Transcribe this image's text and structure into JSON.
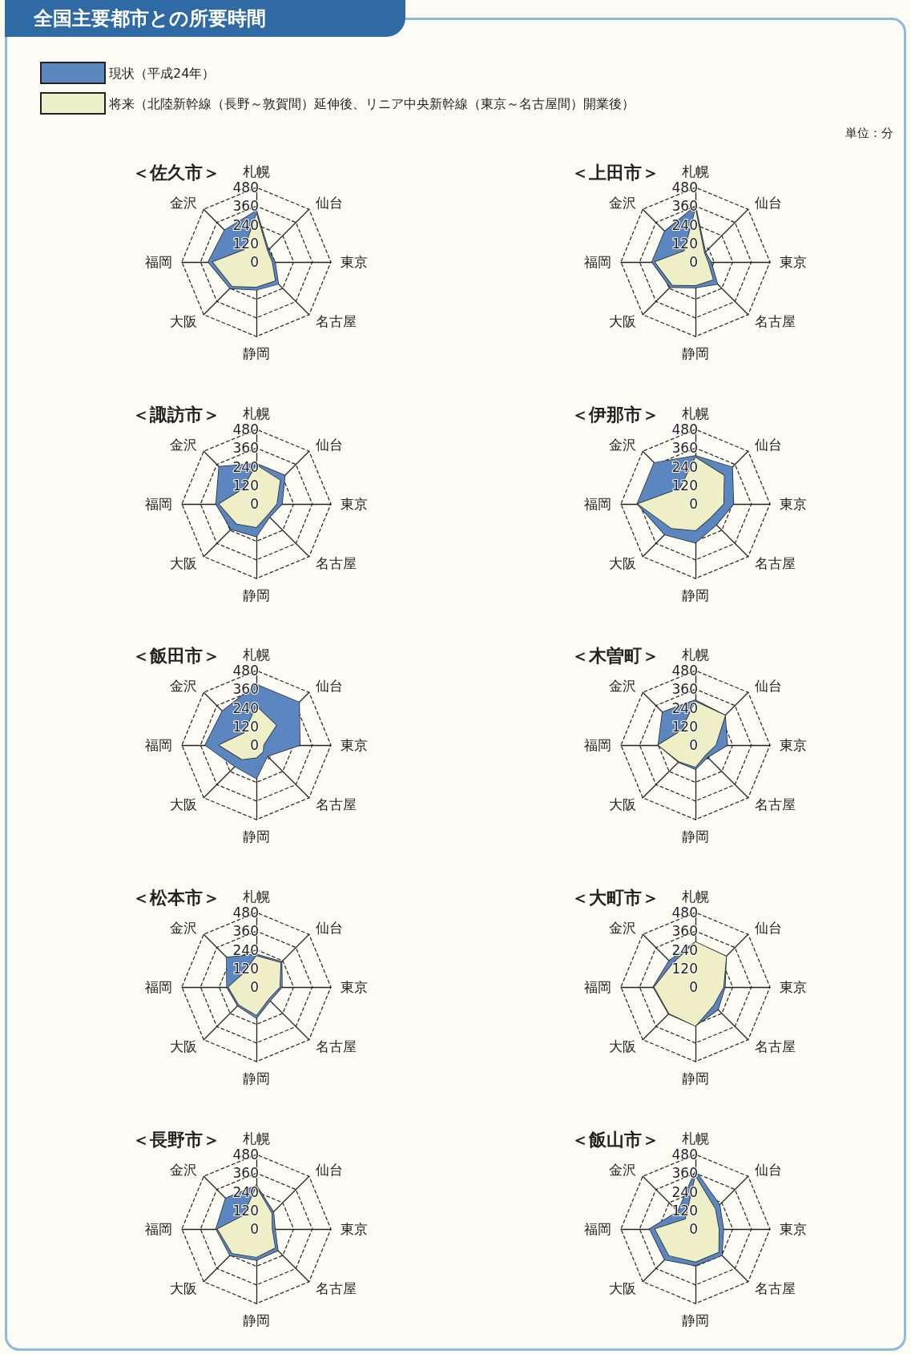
{
  "chart_data": [
    {
      "type": "other",
      "title": "全国主要都市との所要時間"
    },
    {
      "type": "radar",
      "title": "＜佐久市＞",
      "categories": [
        "札幌",
        "仙台",
        "東京",
        "名古屋",
        "静岡",
        "大阪",
        "福岡",
        "金沢"
      ],
      "ylim": [
        0,
        480
      ],
      "yticks": [
        0,
        120,
        240,
        360,
        480
      ],
      "grid": true,
      "legend": "top right",
      "annotations": [
        "単位：分"
      ],
      "series": [
        {
          "name": "現状（平成24年）",
          "color": "#5b86c0",
          "values": [
            330,
            110,
            120,
            200,
            180,
            240,
            310,
            290
          ]
        },
        {
          "name": "将来（北陸新幹線（長野～敦賀間）延伸後、リニア中央新幹線（東京～名古屋間）開業後）",
          "color": "#eeefc6",
          "values": [
            310,
            100,
            100,
            170,
            160,
            220,
            280,
            110
          ]
        }
      ]
    },
    {
      "type": "radar",
      "title": "＜上田市＞",
      "categories": [
        "札幌",
        "仙台",
        "東京",
        "名古屋",
        "静岡",
        "大阪",
        "福岡",
        "金沢"
      ],
      "ylim": [
        0,
        480
      ],
      "yticks": [
        0,
        120,
        240,
        360,
        480
      ],
      "grid": true,
      "series": [
        {
          "color": "#5b86c0",
          "values": [
            360,
            90,
            100,
            200,
            165,
            230,
            280,
            280
          ]
        },
        {
          "color": "#eeefc6",
          "values": [
            340,
            80,
            80,
            160,
            150,
            210,
            260,
            100
          ]
        }
      ]
    },
    {
      "type": "radar",
      "title": "＜諏訪市＞",
      "categories": [
        "札幌",
        "仙台",
        "東京",
        "名古屋",
        "静岡",
        "大阪",
        "福岡",
        "金沢"
      ],
      "ylim": [
        0,
        480
      ],
      "yticks": [
        0,
        120,
        240,
        360,
        480
      ],
      "grid": true,
      "series": [
        {
          "color": "#5b86c0",
          "values": [
            260,
            260,
            165,
            120,
            210,
            230,
            260,
            340
          ]
        },
        {
          "color": "#eeefc6",
          "values": [
            250,
            215,
            130,
            100,
            150,
            180,
            240,
            130
          ]
        }
      ]
    },
    {
      "type": "radar",
      "title": "＜伊那市＞",
      "categories": [
        "札幌",
        "仙台",
        "東京",
        "名古屋",
        "静岡",
        "大阪",
        "福岡",
        "金沢"
      ],
      "ylim": [
        0,
        480
      ],
      "yticks": [
        0,
        120,
        240,
        360,
        480
      ],
      "grid": true,
      "series": [
        {
          "color": "#5b86c0",
          "values": [
            310,
            335,
            245,
            190,
            250,
            280,
            375,
            375
          ]
        },
        {
          "color": "#eeefc6",
          "values": [
            300,
            260,
            180,
            130,
            170,
            220,
            370,
            140
          ]
        }
      ]
    },
    {
      "type": "radar",
      "title": "＜飯田市＞",
      "categories": [
        "札幌",
        "仙台",
        "東京",
        "名古屋",
        "静岡",
        "大阪",
        "福岡",
        "金沢"
      ],
      "ylim": [
        0,
        480
      ],
      "yticks": [
        0,
        120,
        240,
        360,
        480
      ],
      "grid": true,
      "series": [
        {
          "color": "#5b86c0",
          "values": [
            390,
            390,
            280,
            100,
            215,
            195,
            330,
            310
          ]
        },
        {
          "color": "#eeefc6",
          "values": [
            250,
            180,
            45,
            60,
            80,
            130,
            240,
            110
          ]
        }
      ]
    },
    {
      "type": "radar",
      "title": "＜木曽町＞",
      "categories": [
        "札幌",
        "仙台",
        "東京",
        "名古屋",
        "静岡",
        "大阪",
        "福岡",
        "金沢"
      ],
      "ylim": [
        0,
        480
      ],
      "yticks": [
        0,
        120,
        240,
        360,
        480
      ],
      "grid": true,
      "series": [
        {
          "color": "#5b86c0",
          "values": [
            290,
            270,
            205,
            110,
            155,
            155,
            240,
            300
          ]
        },
        {
          "color": "#eeefc6",
          "values": [
            280,
            270,
            130,
            90,
            140,
            150,
            240,
            130
          ]
        }
      ]
    },
    {
      "type": "radar",
      "title": "＜松本市＞",
      "categories": [
        "札幌",
        "仙台",
        "東京",
        "名古屋",
        "静岡",
        "大阪",
        "福岡",
        "金沢"
      ],
      "ylim": [
        0,
        480
      ],
      "yticks": [
        0,
        120,
        240,
        360,
        480
      ],
      "grid": true,
      "series": [
        {
          "color": "#5b86c0",
          "values": [
            210,
            230,
            165,
            125,
            200,
            170,
            190,
            270
          ]
        },
        {
          "color": "#eeefc6",
          "values": [
            200,
            220,
            150,
            110,
            180,
            160,
            180,
            120
          ]
        }
      ]
    },
    {
      "type": "radar",
      "title": "＜大町市＞",
      "categories": [
        "札幌",
        "仙台",
        "東京",
        "名古屋",
        "静岡",
        "大阪",
        "福岡",
        "金沢"
      ],
      "ylim": [
        0,
        480
      ],
      "yticks": [
        0,
        120,
        240,
        360,
        480
      ],
      "grid": true,
      "series": [
        {
          "color": "#5b86c0",
          "values": [
            290,
            280,
            190,
            205,
            250,
            245,
            272,
            240
          ]
        },
        {
          "color": "#eeefc6",
          "values": [
            290,
            280,
            180,
            165,
            250,
            240,
            265,
            210
          ]
        }
      ]
    },
    {
      "type": "radar",
      "title": "＜長野市＞",
      "categories": [
        "札幌",
        "仙台",
        "東京",
        "名古屋",
        "静岡",
        "大阪",
        "福岡",
        "金沢"
      ],
      "ylim": [
        0,
        480
      ],
      "yticks": [
        0,
        120,
        240,
        360,
        480
      ],
      "grid": true,
      "series": [
        {
          "color": "#5b86c0",
          "values": [
            280,
            155,
            120,
            195,
            200,
            240,
            260,
            280
          ]
        },
        {
          "color": "#eeefc6",
          "values": [
            270,
            140,
            100,
            170,
            180,
            220,
            250,
            120
          ]
        }
      ]
    },
    {
      "type": "radar",
      "title": "＜飯山市＞",
      "categories": [
        "札幌",
        "仙台",
        "東京",
        "名古屋",
        "静岡",
        "大阪",
        "福岡",
        "金沢"
      ],
      "ylim": [
        0,
        480
      ],
      "yticks": [
        0,
        120,
        240,
        360,
        480
      ],
      "grid": true,
      "series": [
        {
          "color": "#5b86c0",
          "values": [
            375,
            220,
            180,
            240,
            235,
            280,
            295,
            160
          ]
        },
        {
          "color": "#eeefc6",
          "values": [
            340,
            180,
            150,
            210,
            210,
            240,
            260,
            90
          ]
        }
      ]
    }
  ]
}
